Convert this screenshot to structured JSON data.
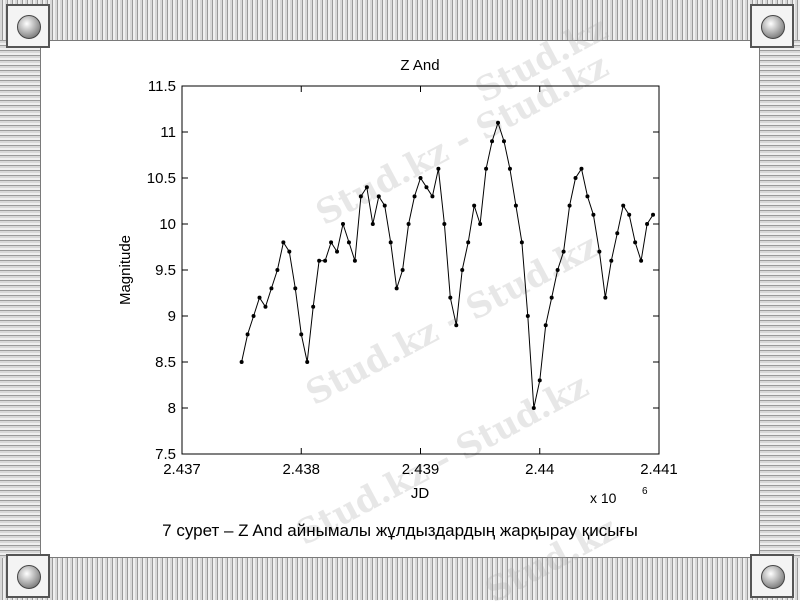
{
  "caption": "7 сурет –  Z And айнымалы жұлдыздардың жарқырау қисығы",
  "watermarks": [
    "Stud.kz - Stud.kz",
    "Stud.kz - Stud.kz",
    "Stud.kz - Stud.kz",
    "Stud.kz",
    "Stud.kz"
  ],
  "colors": {
    "line": "#000000",
    "frame": "#a0a0a0",
    "watermark": "#bbbbbb"
  },
  "chart_data": {
    "type": "line",
    "title": "Z And",
    "xlabel": "JD",
    "ylabel": "Magnitude",
    "x_multiplier_label": "x 10",
    "x_multiplier_exp": "6",
    "xlim": [
      2.437,
      2.441
    ],
    "ylim": [
      7.5,
      11.5
    ],
    "xticks": [
      2.437,
      2.438,
      2.439,
      2.44,
      2.441
    ],
    "xtick_labels": [
      "2.437",
      "2.438",
      "2.439",
      "2.44",
      "2.441"
    ],
    "yticks": [
      7.5,
      8,
      8.5,
      9,
      9.5,
      10,
      10.5,
      11,
      11.5
    ],
    "ytick_labels": [
      "7.5",
      "8",
      "8.5",
      "9",
      "9.5",
      "10",
      "10.5",
      "11",
      "11.5"
    ],
    "grid": false,
    "series": [
      {
        "markers": true,
        "x": [
          2.4375,
          2.43755,
          2.4376,
          2.43765,
          2.4377,
          2.43775,
          2.4378,
          2.43785,
          2.4379,
          2.43795,
          2.438,
          2.43805,
          2.4381,
          2.43815,
          2.4382,
          2.43825,
          2.4383,
          2.43835,
          2.4384,
          2.43845,
          2.4385,
          2.43855,
          2.4386,
          2.43865,
          2.4387,
          2.43875,
          2.4388,
          2.43885,
          2.4389,
          2.43895,
          2.439,
          2.43905,
          2.4391,
          2.43915,
          2.4392,
          2.43925,
          2.4393,
          2.43935,
          2.4394,
          2.43945,
          2.4395,
          2.43955,
          2.4396,
          2.43965,
          2.4397,
          2.43975,
          2.4398,
          2.43985,
          2.4399,
          2.43995,
          2.44,
          2.44005,
          2.4401,
          2.44015,
          2.4402,
          2.44025,
          2.4403,
          2.44035,
          2.4404,
          2.44045,
          2.4405,
          2.44055,
          2.4406,
          2.44065,
          2.4407,
          2.44075,
          2.4408,
          2.44085,
          2.4409,
          2.44095
        ],
        "y": [
          8.5,
          8.8,
          9.0,
          9.2,
          9.1,
          9.3,
          9.5,
          9.8,
          9.7,
          9.3,
          8.8,
          8.5,
          9.1,
          9.6,
          9.6,
          9.8,
          9.7,
          10.0,
          9.8,
          9.6,
          10.3,
          10.4,
          10.0,
          10.3,
          10.2,
          9.8,
          9.3,
          9.5,
          10.0,
          10.3,
          10.5,
          10.4,
          10.3,
          10.6,
          10.0,
          9.2,
          8.9,
          9.5,
          9.8,
          10.2,
          10.0,
          10.6,
          10.9,
          11.1,
          10.9,
          10.6,
          10.2,
          9.8,
          9.0,
          8.0,
          8.3,
          8.9,
          9.2,
          9.5,
          9.7,
          10.2,
          10.5,
          10.6,
          10.3,
          10.1,
          9.7,
          9.2,
          9.6,
          9.9,
          10.2,
          10.1,
          9.8,
          9.6,
          10.0,
          10.1
        ]
      }
    ]
  }
}
